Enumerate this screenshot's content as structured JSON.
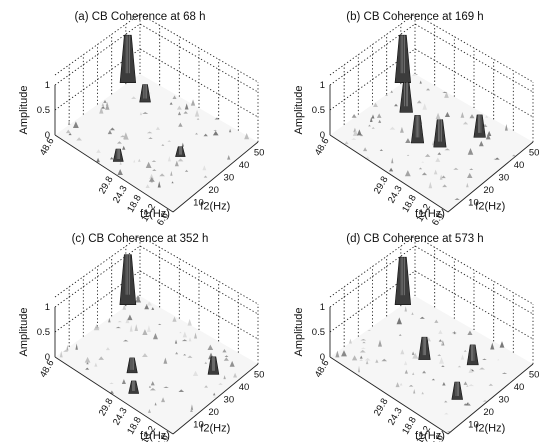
{
  "chart_data": [
    {
      "type": "surface",
      "title": "(a) CB Coherence at 68 h",
      "zlabel": "Amplitude",
      "x_axis": {
        "label": "f1(Hz)",
        "ticks": [
          "48.6",
          "29.8",
          "24.3",
          "18.8",
          "13.2",
          "6.6"
        ]
      },
      "y_axis": {
        "label": "f2(Hz)",
        "ticks": [
          "10",
          "20",
          "30",
          "40",
          "50"
        ]
      },
      "z_axis": {
        "ticks": [
          "0",
          "0.5",
          "1"
        ],
        "zlim": [
          0,
          1
        ]
      },
      "peaks": [
        {
          "f1": 48.6,
          "f2": 48,
          "amplitude": 0.95
        },
        {
          "f1": 40,
          "f2": 44,
          "amplitude": 0.35
        },
        {
          "f1": 29.8,
          "f2": 12,
          "amplitude": 0.25
        },
        {
          "f1": 18.8,
          "f2": 30,
          "amplitude": 0.2
        }
      ]
    },
    {
      "type": "surface",
      "title": "(b) CB Coherence at 169 h",
      "zlabel": "Amplitude",
      "x_axis": {
        "label": "f1(Hz)",
        "ticks": [
          "48.6",
          "29.8",
          "24.3",
          "18.8",
          "13.2",
          "6.6"
        ]
      },
      "y_axis": {
        "label": "f2(Hz)",
        "ticks": [
          "10",
          "20",
          "30",
          "40",
          "50"
        ]
      },
      "z_axis": {
        "ticks": [
          "0",
          "0.5",
          "1"
        ],
        "zlim": [
          0,
          1
        ]
      },
      "peaks": [
        {
          "f1": 48.6,
          "f2": 48,
          "amplitude": 0.95
        },
        {
          "f1": 29.8,
          "f2": 26,
          "amplitude": 0.55
        },
        {
          "f1": 24.3,
          "f2": 30,
          "amplitude": 0.55
        },
        {
          "f1": 40,
          "f2": 36,
          "amplitude": 0.6
        },
        {
          "f1": 18.8,
          "f2": 44,
          "amplitude": 0.45
        }
      ]
    },
    {
      "type": "surface",
      "title": "(c) CB Coherence at 352 h",
      "zlabel": "Amplitude",
      "x_axis": {
        "label": "f1(Hz)",
        "ticks": [
          "48.6",
          "29.8",
          "24.3",
          "18.8",
          "13.2",
          "6.6"
        ]
      },
      "y_axis": {
        "label": "f2(Hz)",
        "ticks": [
          "10",
          "20",
          "30",
          "40",
          "50"
        ]
      },
      "z_axis": {
        "ticks": [
          "0",
          "0.5",
          "1"
        ],
        "zlim": [
          0,
          1
        ]
      },
      "peaks": [
        {
          "f1": 48.6,
          "f2": 48,
          "amplitude": 1.0
        },
        {
          "f1": 29.8,
          "f2": 20,
          "amplitude": 0.3
        },
        {
          "f1": 13.2,
          "f2": 40,
          "amplitude": 0.35
        },
        {
          "f1": 24.3,
          "f2": 12,
          "amplitude": 0.25
        }
      ]
    },
    {
      "type": "surface",
      "title": "(d) CB Coherence at 573 h",
      "zlabel": "Amplitude",
      "x_axis": {
        "label": "f1(Hz)",
        "ticks": [
          "48.6",
          "29.8",
          "24.3",
          "18.8",
          "13.2",
          "6.6"
        ]
      },
      "y_axis": {
        "label": "f2(Hz)",
        "ticks": [
          "10",
          "20",
          "30",
          "40",
          "50"
        ]
      },
      "z_axis": {
        "ticks": [
          "0",
          "0.5",
          "1"
        ],
        "zlim": [
          0,
          1
        ]
      },
      "peaks": [
        {
          "f1": 48.6,
          "f2": 48,
          "amplitude": 0.95
        },
        {
          "f1": 29.8,
          "f2": 30,
          "amplitude": 0.45
        },
        {
          "f1": 18.8,
          "f2": 40,
          "amplitude": 0.4
        },
        {
          "f1": 13.2,
          "f2": 22,
          "amplitude": 0.35
        }
      ]
    }
  ]
}
